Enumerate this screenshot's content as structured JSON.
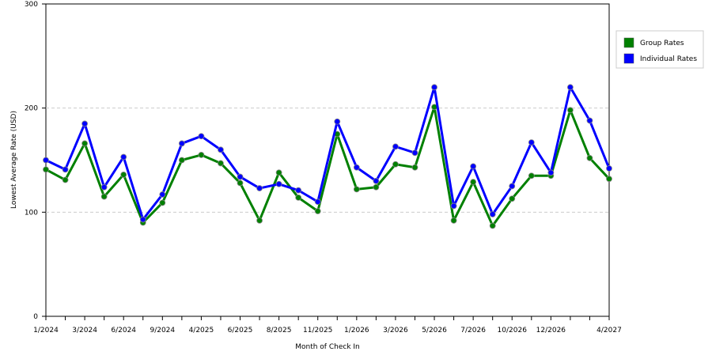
{
  "chart_data": {
    "type": "line",
    "x_label": "Month of Check In",
    "y_label": "Lowest Average Rate (USD)",
    "categories": [
      "1/2024",
      null,
      "3/2024",
      null,
      "6/2024",
      null,
      "9/2024",
      null,
      "4/2025",
      null,
      "6/2025",
      null,
      "8/2025",
      null,
      "11/2025",
      null,
      "1/2026",
      null,
      "3/2026",
      null,
      "5/2026",
      null,
      "7/2026",
      null,
      "10/2026",
      null,
      "12/2026",
      null,
      null,
      "4/2027"
    ],
    "series": [
      {
        "name": "Group Rates",
        "color": "#008000",
        "values": [
          141,
          131,
          166,
          115,
          136,
          90,
          109,
          150,
          155,
          147,
          128,
          92,
          138,
          114,
          101,
          175,
          122,
          124,
          146,
          143,
          201,
          92,
          129,
          87,
          113,
          135,
          135,
          198,
          152,
          132
        ]
      },
      {
        "name": "Individual Rates",
        "color": "#0000ff",
        "values": [
          150,
          141,
          185,
          124,
          153,
          93,
          117,
          166,
          173,
          160,
          134,
          123,
          127,
          121,
          110,
          187,
          143,
          130,
          163,
          157,
          220,
          106,
          144,
          98,
          125,
          167,
          138,
          220,
          188,
          142
        ]
      }
    ],
    "ylim": [
      0,
      300
    ],
    "yticks": [
      0,
      100,
      200,
      300
    ],
    "grid": true,
    "legend": "top-right"
  }
}
